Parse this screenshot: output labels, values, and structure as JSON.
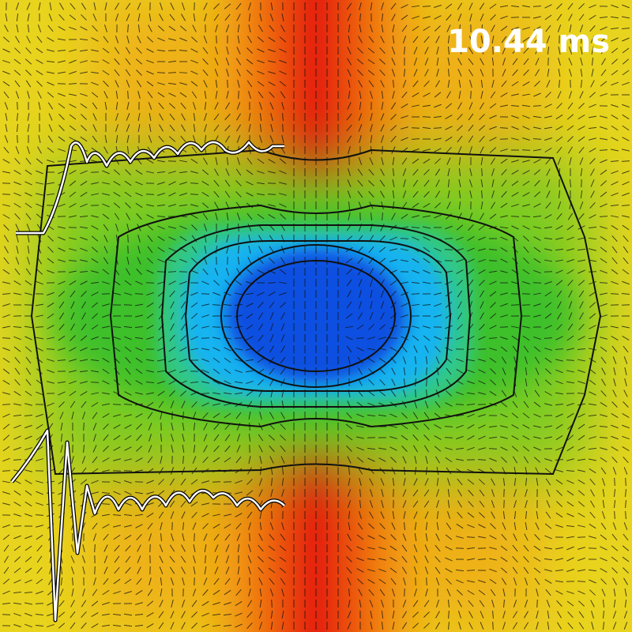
{
  "time_label": "10.44 ms"
}
